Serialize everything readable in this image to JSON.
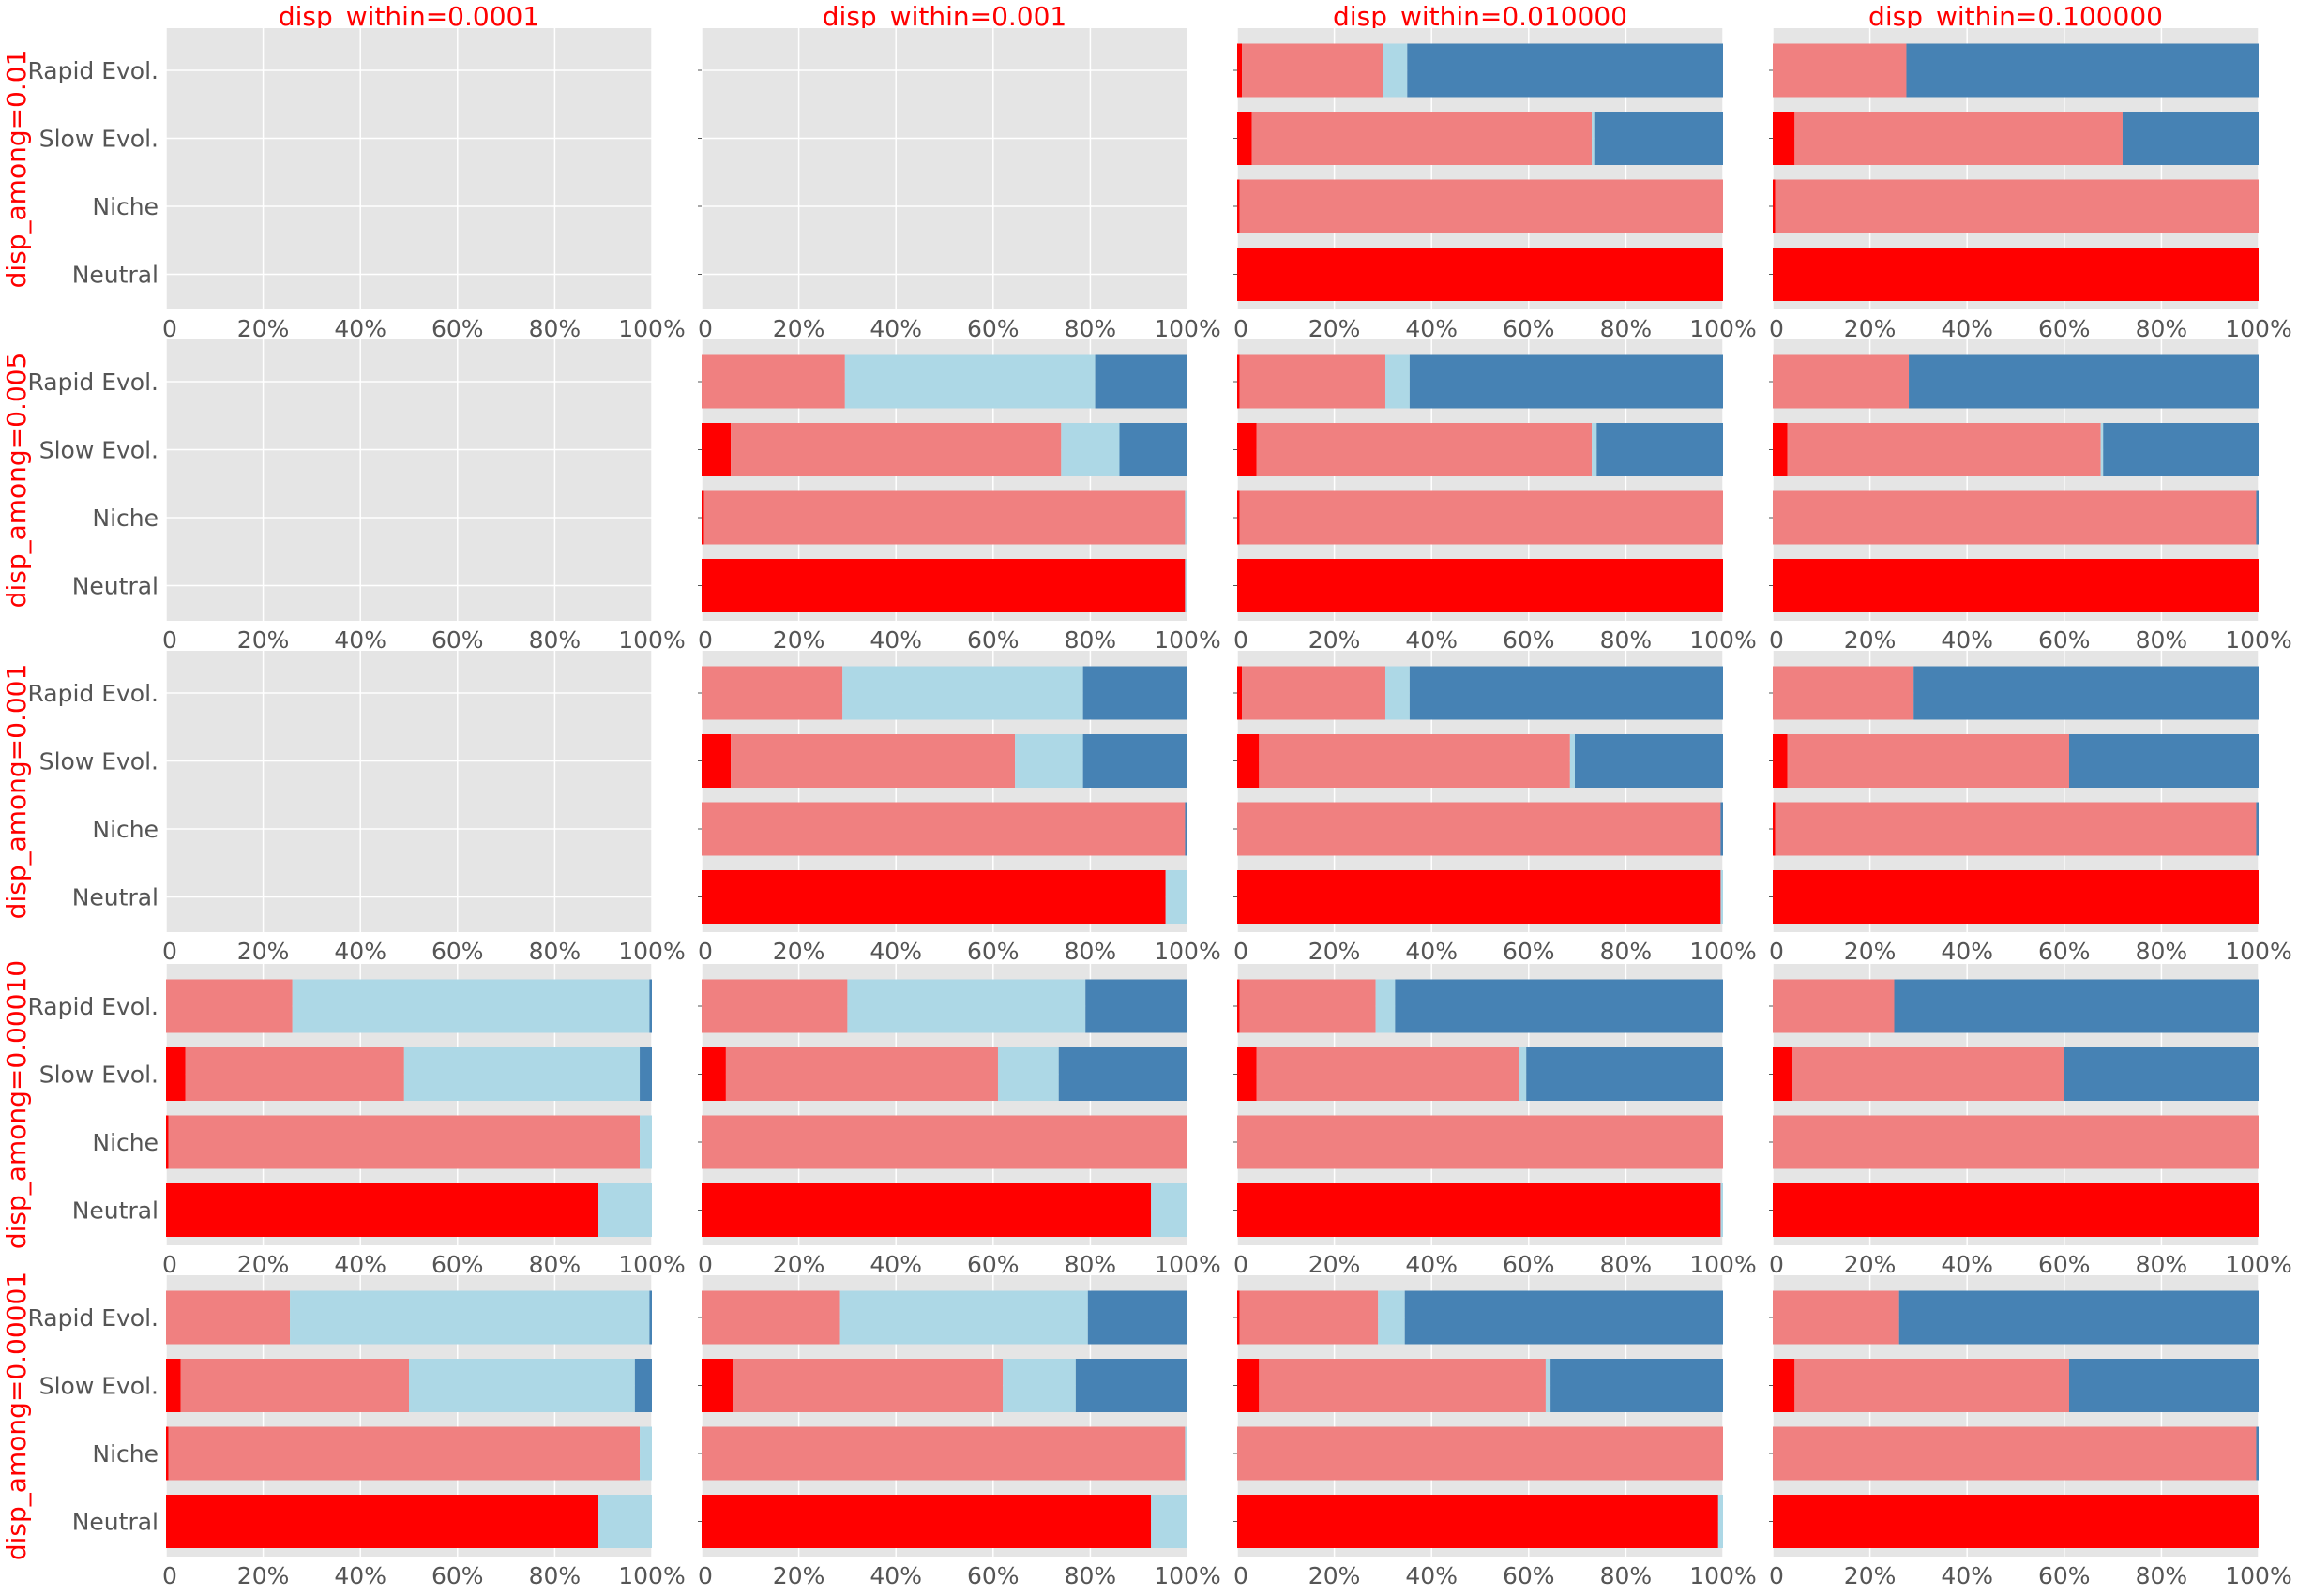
{
  "figure": {
    "column_titles": [
      "disp_within=0.0001",
      "disp_within=0.001",
      "disp_within=0.010000",
      "disp_within=0.100000"
    ],
    "row_titles": [
      "disp_among=0.01",
      "disp_among=0.005",
      "disp_among=0.001",
      "disp_among=0.00010",
      "disp_among=0.00001"
    ],
    "title_color": "#ff0000",
    "panel_background": "#e5e5e5",
    "grid_color": "#ffffff",
    "tick_color": "#555555"
  },
  "chart_data": {
    "type": "bar",
    "orientation": "horizontal",
    "stacked": true,
    "categories": [
      "Rapid Evol.",
      "Slow Evol.",
      "Niche",
      "Neutral"
    ],
    "stack_colors": [
      "#ff0000",
      "#f08080",
      "#add8e6",
      "#4682b4"
    ],
    "xlim": [
      0,
      100
    ],
    "x_ticks": [
      "0",
      "20%",
      "40%",
      "60%",
      "80%",
      "100%"
    ],
    "grid": true,
    "panels": [
      [
        {
          "empty": true
        },
        {
          "empty": true
        },
        {
          "empty": false,
          "values": [
            [
              1,
              29,
              5,
              65
            ],
            [
              3,
              70,
              0.5,
              26.5
            ],
            [
              0.5,
              99.5,
              0,
              0
            ],
            [
              100,
              0,
              0,
              0
            ]
          ]
        },
        {
          "empty": false,
          "values": [
            [
              0,
              27.5,
              0,
              72.5
            ],
            [
              4.5,
              67.5,
              0,
              28
            ],
            [
              0.5,
              99.5,
              0,
              0
            ],
            [
              100,
              0,
              0,
              0
            ]
          ]
        }
      ],
      [
        {
          "empty": true
        },
        {
          "empty": false,
          "values": [
            [
              0,
              29.5,
              51.5,
              19
            ],
            [
              6,
              68,
              12,
              14
            ],
            [
              0.5,
              99,
              0.5,
              0
            ],
            [
              99.5,
              0,
              0.5,
              0
            ]
          ]
        },
        {
          "empty": false,
          "values": [
            [
              0.5,
              30,
              5,
              64.5
            ],
            [
              4,
              69,
              1,
              26
            ],
            [
              0.5,
              99.5,
              0,
              0
            ],
            [
              100,
              0,
              0,
              0
            ]
          ]
        },
        {
          "empty": false,
          "values": [
            [
              0,
              28,
              0,
              72
            ],
            [
              3,
              64.5,
              0.5,
              32
            ],
            [
              0,
              99.5,
              0,
              0.5
            ],
            [
              100,
              0,
              0,
              0
            ]
          ]
        }
      ],
      [
        {
          "empty": true
        },
        {
          "empty": false,
          "values": [
            [
              0,
              29,
              49.5,
              21.5
            ],
            [
              6,
              58.5,
              14,
              21.5
            ],
            [
              0,
              99.5,
              0,
              0.5
            ],
            [
              95.5,
              0,
              4.5,
              0
            ]
          ]
        },
        {
          "empty": false,
          "values": [
            [
              1,
              29.5,
              5,
              64.5
            ],
            [
              4.5,
              64,
              1,
              30.5
            ],
            [
              0,
              99.5,
              0,
              0.5
            ],
            [
              99.5,
              0,
              0.5,
              0
            ]
          ]
        },
        {
          "empty": false,
          "values": [
            [
              0,
              29,
              0,
              71
            ],
            [
              3,
              58,
              0,
              39
            ],
            [
              0.5,
              99,
              0,
              0.5
            ],
            [
              100,
              0,
              0,
              0
            ]
          ]
        }
      ],
      [
        {
          "empty": false,
          "values": [
            [
              0,
              26,
              73.5,
              0.5
            ],
            [
              4,
              45,
              48.5,
              2.5
            ],
            [
              0.5,
              97,
              2.5,
              0
            ],
            [
              89,
              0,
              11,
              0
            ]
          ]
        },
        {
          "empty": false,
          "values": [
            [
              0,
              30,
              49,
              21
            ],
            [
              5,
              56,
              12.5,
              26.5
            ],
            [
              0,
              100,
              0,
              0
            ],
            [
              92.5,
              0,
              7.5,
              0
            ]
          ]
        },
        {
          "empty": false,
          "values": [
            [
              0.5,
              28,
              4,
              67.5
            ],
            [
              4,
              54,
              1.5,
              40.5
            ],
            [
              0,
              100,
              0,
              0
            ],
            [
              99.5,
              0,
              0.5,
              0
            ]
          ]
        },
        {
          "empty": false,
          "values": [
            [
              0,
              25,
              0,
              75
            ],
            [
              4,
              56,
              0,
              40
            ],
            [
              0,
              100,
              0,
              0
            ],
            [
              100,
              0,
              0,
              0
            ]
          ]
        }
      ],
      [
        {
          "empty": false,
          "values": [
            [
              0,
              25.5,
              74,
              0.5
            ],
            [
              3,
              47,
              46.5,
              3.5
            ],
            [
              0.5,
              97,
              2.5,
              0
            ],
            [
              89,
              0,
              11,
              0
            ]
          ]
        },
        {
          "empty": false,
          "values": [
            [
              0,
              28.5,
              51,
              20.5
            ],
            [
              6.5,
              55.5,
              15,
              23
            ],
            [
              0,
              99.5,
              0.5,
              0
            ],
            [
              92.5,
              0,
              7.5,
              0
            ]
          ]
        },
        {
          "empty": false,
          "values": [
            [
              0.5,
              28.5,
              5.5,
              65.5
            ],
            [
              4.5,
              59,
              1,
              35.5
            ],
            [
              0,
              100,
              0,
              0
            ],
            [
              99,
              0,
              1,
              0
            ]
          ]
        },
        {
          "empty": false,
          "values": [
            [
              0,
              26,
              0,
              74
            ],
            [
              4.5,
              56.5,
              0,
              39
            ],
            [
              0,
              99.5,
              0,
              0.5
            ],
            [
              100,
              0,
              0,
              0
            ]
          ]
        }
      ]
    ]
  }
}
